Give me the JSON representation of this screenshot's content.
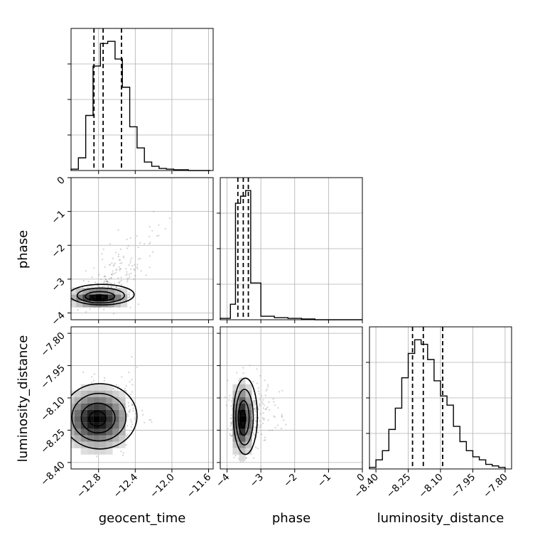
{
  "chart_data": {
    "type": "corner",
    "parameters": [
      "geocent_time",
      "phase",
      "luminosity_distance"
    ],
    "axes": {
      "geocent_time": {
        "range": [
          -13.1,
          -11.55
        ],
        "ticks": [
          -12.8,
          -12.4,
          -12.0,
          -11.6
        ],
        "tick_labels": [
          "−12.8",
          "−12.4",
          "−12.0",
          "−11.6"
        ]
      },
      "phase": {
        "range": [
          -4.2,
          0.0
        ],
        "ticks": [
          -4,
          -3,
          -2,
          -1,
          0
        ],
        "tick_labels": [
          "−4",
          "−3",
          "−2",
          "−1",
          "0"
        ]
      },
      "luminosity_distance": {
        "range": [
          -8.43,
          -7.77
        ],
        "ticks": [
          -8.4,
          -8.25,
          -8.1,
          -7.95,
          -7.8
        ],
        "tick_labels": [
          "−8.40",
          "−8.25",
          "−8.10",
          "−7.95",
          "−7.80"
        ]
      }
    },
    "histograms": {
      "geocent_time": {
        "bin_edges": [
          -13.1,
          -13.02,
          -12.94,
          -12.86,
          -12.78,
          -12.7,
          -12.62,
          -12.54,
          -12.46,
          -12.38,
          -12.3,
          -12.22,
          -12.14,
          -12.06,
          -11.98,
          -11.9,
          -11.82,
          -11.74,
          -11.66,
          -11.58
        ],
        "counts": [
          2,
          18,
          78,
          148,
          180,
          183,
          158,
          118,
          62,
          32,
          12,
          6,
          3,
          2,
          1,
          1,
          0,
          0,
          0
        ],
        "quantiles": [
          -12.85,
          -12.75,
          -12.55
        ]
      },
      "phase": {
        "bin_edges": [
          -4.2,
          -3.9,
          -3.75,
          -3.6,
          -3.45,
          -3.3,
          -3.0,
          -2.6,
          -2.2,
          -1.8,
          -1.4,
          -1.0,
          0.0
        ],
        "counts": [
          2,
          22,
          165,
          175,
          183,
          52,
          5,
          3,
          2,
          1,
          0,
          0
        ],
        "quantiles": [
          -3.68,
          -3.52,
          -3.37
        ]
      },
      "luminosity_distance": {
        "bin_edges": [
          -8.43,
          -8.4,
          -8.37,
          -8.34,
          -8.31,
          -8.28,
          -8.25,
          -8.22,
          -8.19,
          -8.16,
          -8.13,
          -8.1,
          -8.07,
          -8.04,
          -8.01,
          -7.98,
          -7.95,
          -7.92,
          -7.89,
          -7.86,
          -7.83,
          -7.8
        ],
        "counts": [
          1,
          6,
          12,
          26,
          40,
          60,
          76,
          85,
          82,
          72,
          58,
          48,
          42,
          28,
          18,
          12,
          8,
          6,
          3,
          2,
          1
        ],
        "quantiles": [
          -8.23,
          -8.18,
          -8.09
        ]
      }
    },
    "pairs": [
      {
        "x": "geocent_time",
        "y": "phase",
        "center": [
          -12.8,
          -3.55
        ],
        "spread": [
          0.14,
          0.12
        ],
        "tail": [
          0.4,
          1.5
        ]
      },
      {
        "x": "geocent_time",
        "y": "luminosity_distance",
        "center": [
          -12.82,
          -8.2
        ],
        "spread": [
          0.16,
          0.06
        ],
        "tail": [
          0.2,
          0.1
        ]
      },
      {
        "x": "phase",
        "y": "luminosity_distance",
        "center": [
          -3.55,
          -8.2
        ],
        "spread": [
          0.14,
          0.07
        ],
        "tail": [
          0.8,
          0.05
        ]
      }
    ],
    "grid": true,
    "legend": ""
  }
}
